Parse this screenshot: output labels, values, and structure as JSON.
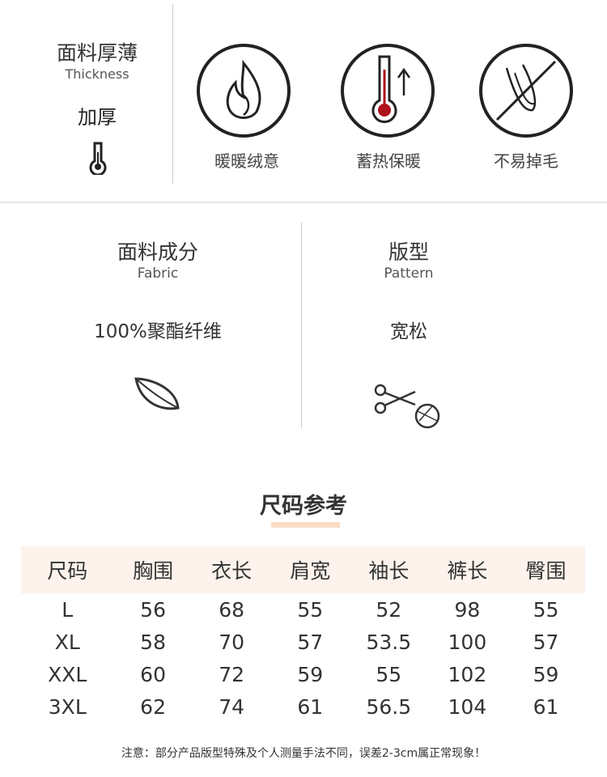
{
  "thickness": {
    "title_cn": "面料厚薄",
    "title_en": "Thickness",
    "value": "加厚",
    "icon": "thermometer-icon"
  },
  "features": [
    {
      "label": "暖暖绒意",
      "icon": "flame-icon"
    },
    {
      "label": "蓄热保暖",
      "icon": "thermometer-up-icon",
      "accent": "#b0121b"
    },
    {
      "label": "不易掉毛",
      "icon": "no-shedding-icon"
    }
  ],
  "fabric": {
    "title_cn": "面料成分",
    "title_en": "Fabric",
    "value": "100%聚酯纤维",
    "icon": "leaf-icon"
  },
  "pattern": {
    "title_cn": "版型",
    "title_en": "Pattern",
    "value": "宽松",
    "icon": "scissors-yarn-icon"
  },
  "size_section": {
    "title": "尺码参考",
    "accent": "#fcdcc6"
  },
  "size_table": {
    "headers": [
      "尺码",
      "胸围",
      "衣长",
      "肩宽",
      "袖长",
      "裤长",
      "臀围"
    ],
    "rows": [
      [
        "L",
        "56",
        "68",
        "55",
        "52",
        "98",
        "55"
      ],
      [
        "XL",
        "58",
        "70",
        "57",
        "53.5",
        "100",
        "57"
      ],
      [
        "XXL",
        "60",
        "72",
        "59",
        "55",
        "102",
        "59"
      ],
      [
        "3XL",
        "62",
        "74",
        "61",
        "56.5",
        "104",
        "61"
      ]
    ]
  },
  "note": "注意：部分产品版型特殊及个人测量手法不同，误差2-3cm属正常现象！"
}
